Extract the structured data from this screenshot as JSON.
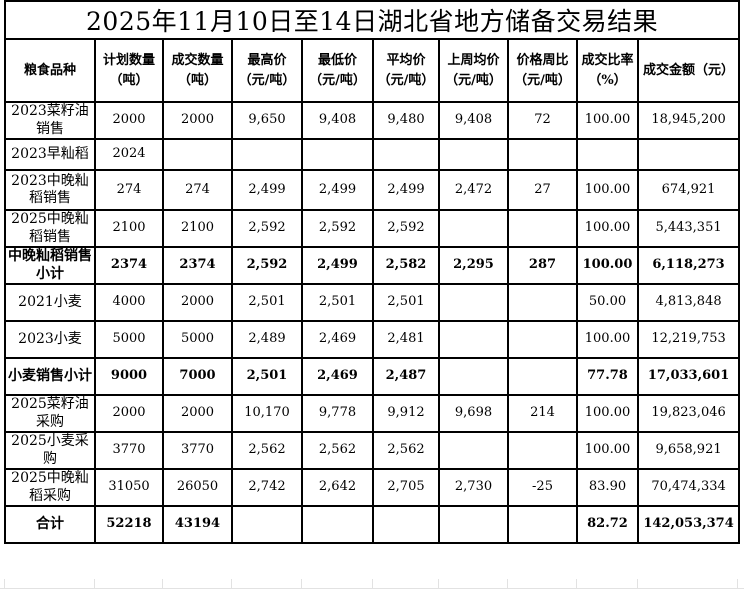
{
  "title": "2025年11月10日至14日湖北省地方储备交易结果",
  "table": {
    "columns": [
      {
        "label": "粮食品种"
      },
      {
        "label": "计划数量\n（吨）"
      },
      {
        "label": "成交数量\n（吨）"
      },
      {
        "label": "最高价\n（元/吨）"
      },
      {
        "label": "最低价\n（元/吨）"
      },
      {
        "label": "平均价\n（元/吨）"
      },
      {
        "label": "上周均价\n（元/吨）"
      },
      {
        "label": "价格周比\n（元/吨）"
      },
      {
        "label": "成交比率\n（%）"
      },
      {
        "label": "成交金额（元）"
      }
    ],
    "rows": [
      {
        "cells": [
          "2023菜籽油销售",
          "2000",
          "2000",
          "9,650",
          "9,408",
          "9,480",
          "9,408",
          "72",
          "100.00",
          "18,945,200"
        ],
        "bold": false,
        "size": "normal"
      },
      {
        "cells": [
          "2023早籼稻",
          "2024",
          "",
          "",
          "",
          "",
          "",
          "",
          "",
          ""
        ],
        "bold": false,
        "size": "short"
      },
      {
        "cells": [
          "2023中晚籼稻销售",
          "274",
          "274",
          "2,499",
          "2,499",
          "2,499",
          "2,472",
          "27",
          "100.00",
          "674,921"
        ],
        "bold": false,
        "size": "tall"
      },
      {
        "cells": [
          "2025中晚籼稻销售",
          "2100",
          "2100",
          "2,592",
          "2,592",
          "2,592",
          "",
          "",
          "100.00",
          "5,443,351"
        ],
        "bold": false,
        "size": "normal"
      },
      {
        "cells": [
          "中晚籼稻销售小计",
          "2374",
          "2374",
          "2,592",
          "2,499",
          "2,582",
          "2,295",
          "287",
          "100.00",
          "6,118,273"
        ],
        "bold": true,
        "size": "normal"
      },
      {
        "cells": [
          "2021小麦",
          "4000",
          "2000",
          "2,501",
          "2,501",
          "2,501",
          "",
          "",
          "50.00",
          "4,813,848"
        ],
        "bold": false,
        "size": "normal"
      },
      {
        "cells": [
          "2023小麦",
          "5000",
          "5000",
          "2,489",
          "2,469",
          "2,481",
          "",
          "",
          "100.00",
          "12,219,753"
        ],
        "bold": false,
        "size": "normal"
      },
      {
        "cells": [
          "小麦销售小计",
          "9000",
          "7000",
          "2,501",
          "2,469",
          "2,487",
          "",
          "",
          "77.78",
          "17,033,601"
        ],
        "bold": true,
        "size": "normal"
      },
      {
        "cells": [
          "2025菜籽油采购",
          "2000",
          "2000",
          "10,170",
          "9,778",
          "9,912",
          "9,698",
          "214",
          "100.00",
          "19,823,046"
        ],
        "bold": false,
        "size": "normal"
      },
      {
        "cells": [
          "2025小麦采购",
          "3770",
          "3770",
          "2,562",
          "2,562",
          "2,562",
          "",
          "",
          "100.00",
          "9,658,921"
        ],
        "bold": false,
        "size": "normal"
      },
      {
        "cells": [
          "2025中晚籼稻采购",
          "31050",
          "26050",
          "2,742",
          "2,642",
          "2,705",
          "2,730",
          "-25",
          "83.90",
          "70,474,334"
        ],
        "bold": false,
        "size": "normal"
      },
      {
        "cells": [
          "合计",
          "52218",
          "43194",
          "",
          "",
          "",
          "",
          "",
          "82.72",
          "142,053,374"
        ],
        "bold": true,
        "size": "normal"
      }
    ]
  },
  "colors": {
    "text": "#000000",
    "table_border": "#000000",
    "background": "#ffffff",
    "faint_gridline": "#e2e2e2"
  }
}
